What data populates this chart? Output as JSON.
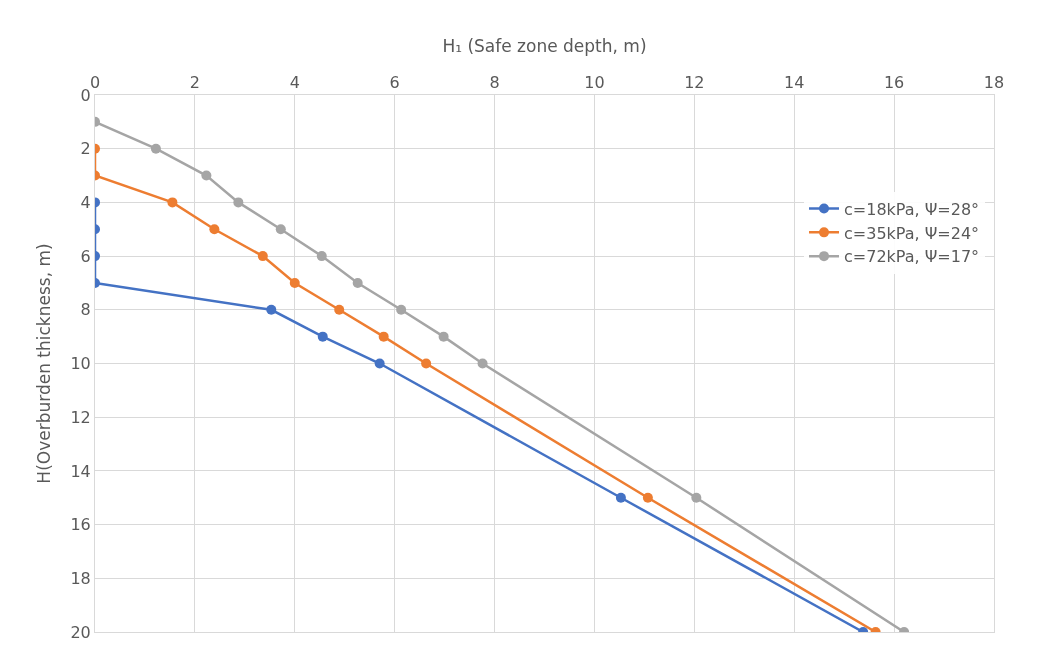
{
  "chart_data": {
    "type": "line",
    "xlabel": "H₁ (Safe zone depth, m)",
    "ylabel": "H(Overburden thickness, m)",
    "xlim": [
      0,
      18
    ],
    "xticks": [
      0,
      2,
      4,
      6,
      8,
      10,
      12,
      14,
      16,
      18
    ],
    "ylim": [
      20,
      0
    ],
    "yticks": [
      0,
      2,
      4,
      6,
      8,
      10,
      12,
      14,
      16,
      18,
      20
    ],
    "grid": true,
    "legend": "right",
    "marker": "circle",
    "line_style": "solid",
    "series": [
      {
        "name": "c=18kPa, Ψ=28°",
        "color": "#4472c4",
        "x": [
          null,
          null,
          null,
          0,
          0,
          0,
          0,
          3.53,
          4.56,
          5.7,
          10.53,
          15.38
        ],
        "values": [
          null,
          null,
          null,
          4,
          5,
          6,
          7,
          8,
          9,
          10,
          15,
          20
        ]
      },
      {
        "name": "c=35kPa, Ψ=24°",
        "color": "#ed7d31",
        "x": [
          null,
          0,
          0,
          1.55,
          2.39,
          3.36,
          4.0,
          4.89,
          5.78,
          6.63,
          11.07,
          15.63
        ],
        "values": [
          null,
          2,
          3,
          4,
          5,
          6,
          7,
          8,
          9,
          10,
          15,
          20
        ]
      },
      {
        "name": "c=72kPa, Ψ=17°",
        "color": "#a5a5a5",
        "x": [
          0,
          1.22,
          2.23,
          2.87,
          3.72,
          4.54,
          5.26,
          6.13,
          6.98,
          7.76,
          12.04,
          16.2
        ],
        "values": [
          1,
          2,
          3,
          4,
          5,
          6,
          7,
          8,
          9,
          10,
          15,
          20
        ]
      }
    ]
  }
}
